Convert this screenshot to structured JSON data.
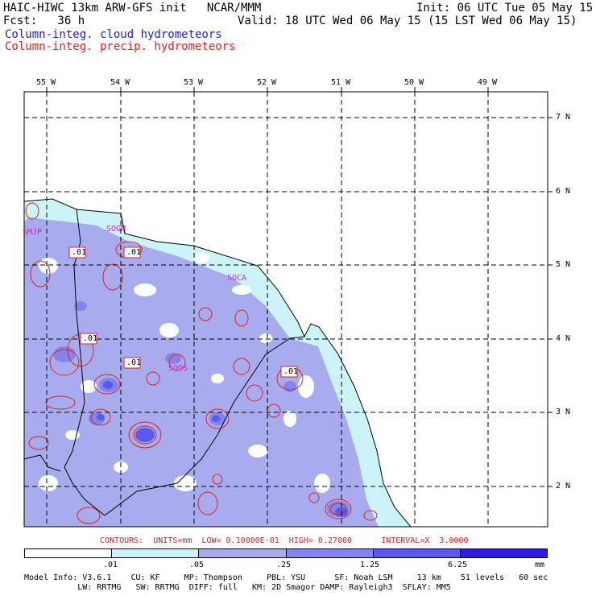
{
  "header": {
    "model_line": "HAIC-HIWC 13km ARW-GFS init   NCAR/MMM",
    "init_line": "Init: 06 UTC Tue 05 May 15",
    "fcst_line": "Fcst:   36 h",
    "valid_line": "Valid: 18 UTC Wed 06 May 15 (15 LST Wed 06 May 15)",
    "field1": "Column-integ. cloud hydrometeors",
    "field2": "Column-integ. precip. hydrometeors",
    "field1_color": "#2222cc",
    "field2_color": "#dd2222"
  },
  "map": {
    "lon_labels": [
      "55 W",
      "54 W",
      "53 W",
      "52 W",
      "51 W",
      "50 W",
      "49 W"
    ],
    "lat_labels": [
      "7 N",
      "6 N",
      "5 N",
      "4 N",
      "3 N",
      "2 N"
    ],
    "stations": [
      "SMJP",
      "SOGM",
      "SOCA",
      "SOOS"
    ],
    "contour_labels": [
      ".01",
      ".01",
      ".01",
      ".01",
      ".01"
    ],
    "station_color": "#cc22cc",
    "contour_color": "#dd2222"
  },
  "contour_info": "CONTOURS:  UNITS=mm  LOW= 0.10000E-01  HIGH= 0.27000      INTERVAL=X  3.0000",
  "colorbar": {
    "colors": [
      "#ffffff",
      "#ccf4f8",
      "#a8acee",
      "#8484ee",
      "#5a58ee",
      "#2c1ae8"
    ],
    "labels": [
      ".01",
      ".05",
      ".25",
      "1.25",
      "6.25",
      "mm"
    ]
  },
  "footer": {
    "line1": "Model Info: V3.6.1    CU: KF     MP: Thompson     PBL: YSU      SF: Noah LSM     13 km    51 levels   60 sec",
    "line2": "           LW: RRTMG   SW: RRTMG  DIFF: full   KM: 2D Smagor DAMP: Rayleigh3  SFLAY: MM5"
  }
}
